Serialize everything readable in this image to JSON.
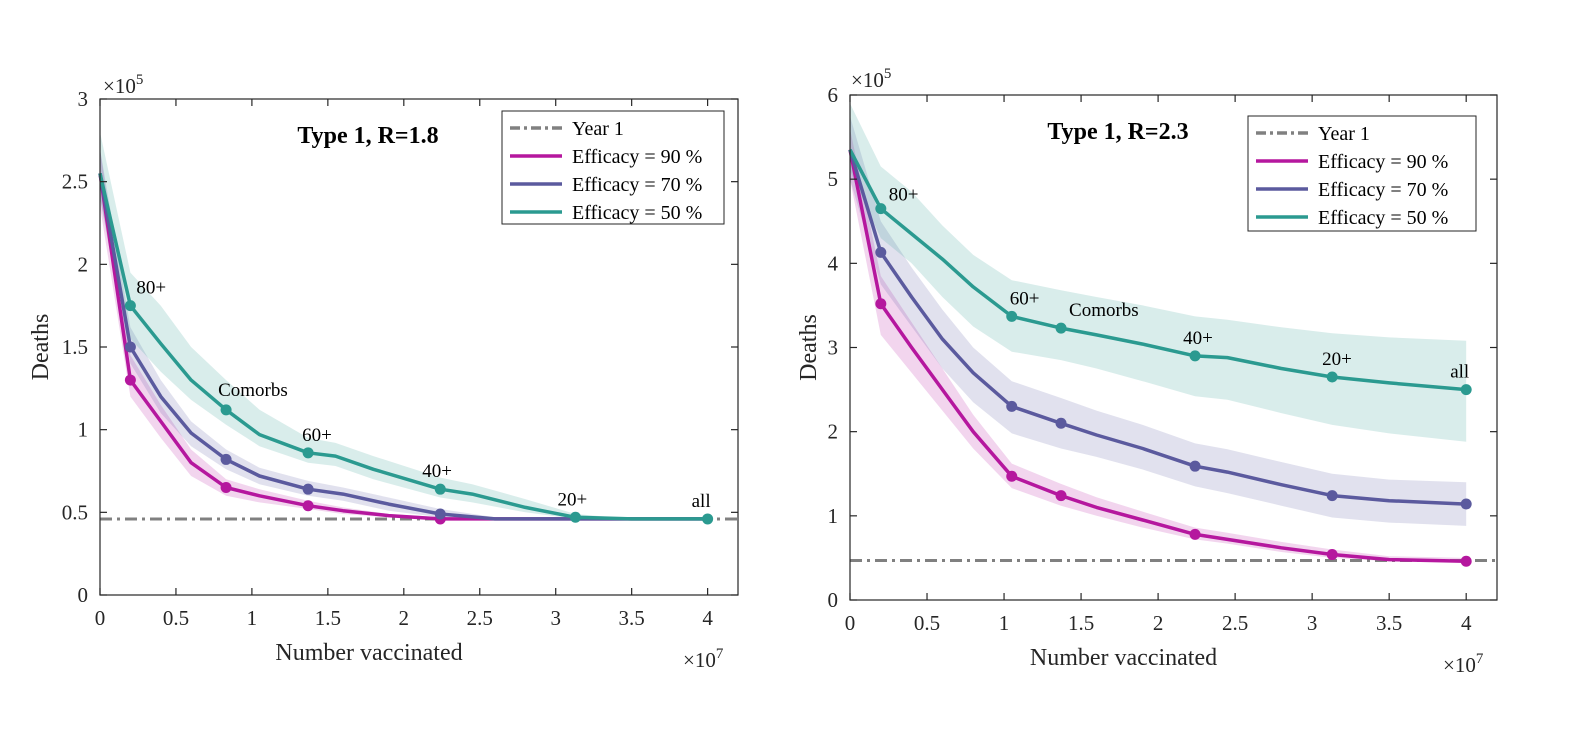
{
  "chart_data": [
    {
      "type": "line",
      "title": "Type 1, R=1.8",
      "xlabel": "Number vaccinated",
      "ylabel": "Deaths",
      "x_multiplier": {
        "base": "×10",
        "exp": "7"
      },
      "y_multiplier": {
        "base": "×10",
        "exp": "5"
      },
      "xlim": [
        0,
        4.2
      ],
      "ylim": [
        0,
        3
      ],
      "xticks": [
        0,
        0.5,
        1,
        1.5,
        2,
        2.5,
        3,
        3.5,
        4
      ],
      "xtick_labels": [
        "0",
        "0.5",
        "1",
        "1.5",
        "2",
        "2.5",
        "3",
        "3.5",
        "4"
      ],
      "yticks": [
        0,
        0.5,
        1,
        1.5,
        2,
        2.5,
        3
      ],
      "ytick_labels": [
        "0",
        "0.5",
        "1",
        "1.5",
        "2",
        "2.5",
        "3"
      ],
      "legend_position": "top-right",
      "reference_line": {
        "name": "Year 1",
        "y": 0.46,
        "color": "#808080",
        "style": "dash-dot"
      },
      "series": [
        {
          "name": "Efficacy = 90 %",
          "color": "#b5179e",
          "x": [
            0,
            0.2,
            0.4,
            0.6,
            0.83,
            1.05,
            1.37,
            1.6,
            1.9,
            2.24,
            2.6,
            3.13,
            3.5,
            4.0
          ],
          "y": [
            2.55,
            1.3,
            1.05,
            0.8,
            0.65,
            0.6,
            0.54,
            0.51,
            0.48,
            0.46,
            0.46,
            0.46,
            0.46,
            0.46
          ],
          "lower": [
            2.35,
            1.2,
            0.95,
            0.72,
            0.6,
            0.56,
            0.52,
            0.49,
            0.47,
            0.46,
            0.46,
            0.46,
            0.46,
            0.46
          ],
          "upper": [
            2.7,
            1.45,
            1.15,
            0.88,
            0.7,
            0.64,
            0.57,
            0.53,
            0.49,
            0.47,
            0.46,
            0.46,
            0.46,
            0.46
          ],
          "markers_x": [
            0.2,
            0.83,
            1.37,
            2.24
          ]
        },
        {
          "name": "Efficacy = 70 %",
          "color": "#5b5a9e",
          "x": [
            0,
            0.2,
            0.4,
            0.6,
            0.83,
            1.05,
            1.37,
            1.6,
            1.9,
            2.24,
            2.6,
            3.13,
            3.5,
            4.0
          ],
          "y": [
            2.55,
            1.5,
            1.2,
            0.98,
            0.82,
            0.72,
            0.64,
            0.61,
            0.55,
            0.49,
            0.46,
            0.46,
            0.46,
            0.46
          ],
          "lower": [
            2.4,
            1.4,
            1.1,
            0.9,
            0.76,
            0.67,
            0.6,
            0.57,
            0.51,
            0.47,
            0.46,
            0.46,
            0.46,
            0.46
          ],
          "upper": [
            2.7,
            1.62,
            1.3,
            1.05,
            0.88,
            0.77,
            0.69,
            0.65,
            0.59,
            0.52,
            0.47,
            0.46,
            0.46,
            0.46
          ],
          "markers_x": [
            0.2,
            0.83,
            1.37,
            2.24
          ]
        },
        {
          "name": "Efficacy = 50 %",
          "color": "#2b9a90",
          "x": [
            0,
            0.2,
            0.4,
            0.6,
            0.83,
            1.05,
            1.37,
            1.55,
            1.8,
            2.24,
            2.45,
            2.8,
            3.13,
            3.5,
            4.0
          ],
          "y": [
            2.55,
            1.75,
            1.52,
            1.3,
            1.12,
            0.97,
            0.86,
            0.84,
            0.76,
            0.64,
            0.61,
            0.53,
            0.47,
            0.46,
            0.46
          ],
          "lower": [
            2.4,
            1.55,
            1.35,
            1.18,
            1.03,
            0.9,
            0.8,
            0.78,
            0.7,
            0.59,
            0.56,
            0.5,
            0.46,
            0.46,
            0.46
          ],
          "upper": [
            2.8,
            1.95,
            1.75,
            1.5,
            1.3,
            1.12,
            0.95,
            0.92,
            0.84,
            0.71,
            0.67,
            0.58,
            0.49,
            0.46,
            0.46
          ],
          "markers_x": [
            0.2,
            0.83,
            1.37,
            2.24,
            3.13,
            4.0
          ]
        }
      ],
      "annotations": [
        {
          "text": "80+",
          "x": 0.2,
          "y": 1.75
        },
        {
          "text": "Comorbs",
          "x": 0.83,
          "y": 1.12
        },
        {
          "text": "60+",
          "x": 1.37,
          "y": 0.86
        },
        {
          "text": "40+",
          "x": 2.24,
          "y": 0.64
        },
        {
          "text": "20+",
          "x": 3.13,
          "y": 0.47
        },
        {
          "text": "all",
          "x": 4.0,
          "y": 0.46
        }
      ]
    },
    {
      "type": "line",
      "title": "Type 1, R=2.3",
      "xlabel": "Number vaccinated",
      "ylabel": "Deaths",
      "x_multiplier": {
        "base": "×10",
        "exp": "7"
      },
      "y_multiplier": {
        "base": "×10",
        "exp": "5"
      },
      "xlim": [
        0,
        4.2
      ],
      "ylim": [
        0,
        6
      ],
      "xticks": [
        0,
        0.5,
        1,
        1.5,
        2,
        2.5,
        3,
        3.5,
        4
      ],
      "xtick_labels": [
        "0",
        "0.5",
        "1",
        "1.5",
        "2",
        "2.5",
        "3",
        "3.5",
        "4"
      ],
      "yticks": [
        0,
        1,
        2,
        3,
        4,
        5,
        6
      ],
      "ytick_labels": [
        "0",
        "1",
        "2",
        "3",
        "4",
        "5",
        "6"
      ],
      "legend_position": "top-right",
      "reference_line": {
        "name": "Year 1",
        "y": 0.47,
        "color": "#808080",
        "style": "dash-dot"
      },
      "series": [
        {
          "name": "Efficacy = 90 %",
          "color": "#b5179e",
          "x": [
            0,
            0.2,
            0.4,
            0.6,
            0.8,
            1.05,
            1.37,
            1.6,
            1.9,
            2.24,
            2.45,
            2.8,
            3.13,
            3.5,
            4.0
          ],
          "y": [
            5.35,
            3.52,
            3.0,
            2.5,
            2.0,
            1.47,
            1.24,
            1.1,
            0.95,
            0.78,
            0.72,
            0.62,
            0.54,
            0.48,
            0.46
          ],
          "lower": [
            5.0,
            3.15,
            2.7,
            2.25,
            1.8,
            1.33,
            1.12,
            1.0,
            0.86,
            0.72,
            0.67,
            0.57,
            0.5,
            0.46,
            0.45
          ],
          "upper": [
            5.6,
            3.85,
            3.3,
            2.75,
            2.2,
            1.62,
            1.38,
            1.22,
            1.05,
            0.86,
            0.8,
            0.69,
            0.6,
            0.52,
            0.5
          ],
          "markers_x": [
            0.2,
            1.05,
            1.37,
            2.24,
            3.13,
            4.0
          ]
        },
        {
          "name": "Efficacy = 70 %",
          "color": "#5b5a9e",
          "x": [
            0,
            0.2,
            0.4,
            0.6,
            0.8,
            1.05,
            1.37,
            1.6,
            1.9,
            2.24,
            2.45,
            2.8,
            3.13,
            3.5,
            4.0
          ],
          "y": [
            5.35,
            4.13,
            3.6,
            3.1,
            2.7,
            2.3,
            2.1,
            1.96,
            1.8,
            1.59,
            1.52,
            1.37,
            1.24,
            1.18,
            1.14
          ],
          "lower": [
            5.0,
            3.75,
            3.25,
            2.75,
            2.35,
            1.98,
            1.8,
            1.7,
            1.55,
            1.35,
            1.27,
            1.12,
            0.98,
            0.92,
            0.88
          ],
          "upper": [
            5.75,
            4.5,
            3.95,
            3.45,
            3.0,
            2.6,
            2.4,
            2.25,
            2.08,
            1.86,
            1.79,
            1.64,
            1.5,
            1.43,
            1.4
          ],
          "markers_x": [
            0.2,
            1.05,
            1.37,
            2.24,
            3.13,
            4.0
          ]
        },
        {
          "name": "Efficacy = 50 %",
          "color": "#2b9a90",
          "x": [
            0,
            0.2,
            0.4,
            0.6,
            0.8,
            1.05,
            1.37,
            1.6,
            1.9,
            2.24,
            2.45,
            2.8,
            3.13,
            3.5,
            4.0
          ],
          "y": [
            5.35,
            4.65,
            4.35,
            4.05,
            3.72,
            3.37,
            3.23,
            3.15,
            3.04,
            2.9,
            2.88,
            2.75,
            2.65,
            2.58,
            2.5
          ],
          "lower": [
            5.1,
            4.3,
            4.0,
            3.6,
            3.25,
            2.95,
            2.85,
            2.75,
            2.6,
            2.42,
            2.38,
            2.22,
            2.08,
            1.98,
            1.88
          ],
          "upper": [
            5.9,
            5.15,
            4.85,
            4.45,
            4.1,
            3.8,
            3.68,
            3.6,
            3.5,
            3.37,
            3.33,
            3.24,
            3.17,
            3.12,
            3.08
          ],
          "markers_x": [
            0.2,
            1.05,
            1.37,
            2.24,
            3.13,
            4.0
          ]
        }
      ],
      "annotations": [
        {
          "text": "80+",
          "x": 0.2,
          "y": 4.65
        },
        {
          "text": "60+",
          "x": 1.05,
          "y": 3.37
        },
        {
          "text": "Comorbs",
          "x": 1.37,
          "y": 3.23
        },
        {
          "text": "40+",
          "x": 2.24,
          "y": 2.9
        },
        {
          "text": "20+",
          "x": 3.13,
          "y": 2.65
        },
        {
          "text": "all",
          "x": 4.0,
          "y": 2.5
        }
      ]
    }
  ]
}
